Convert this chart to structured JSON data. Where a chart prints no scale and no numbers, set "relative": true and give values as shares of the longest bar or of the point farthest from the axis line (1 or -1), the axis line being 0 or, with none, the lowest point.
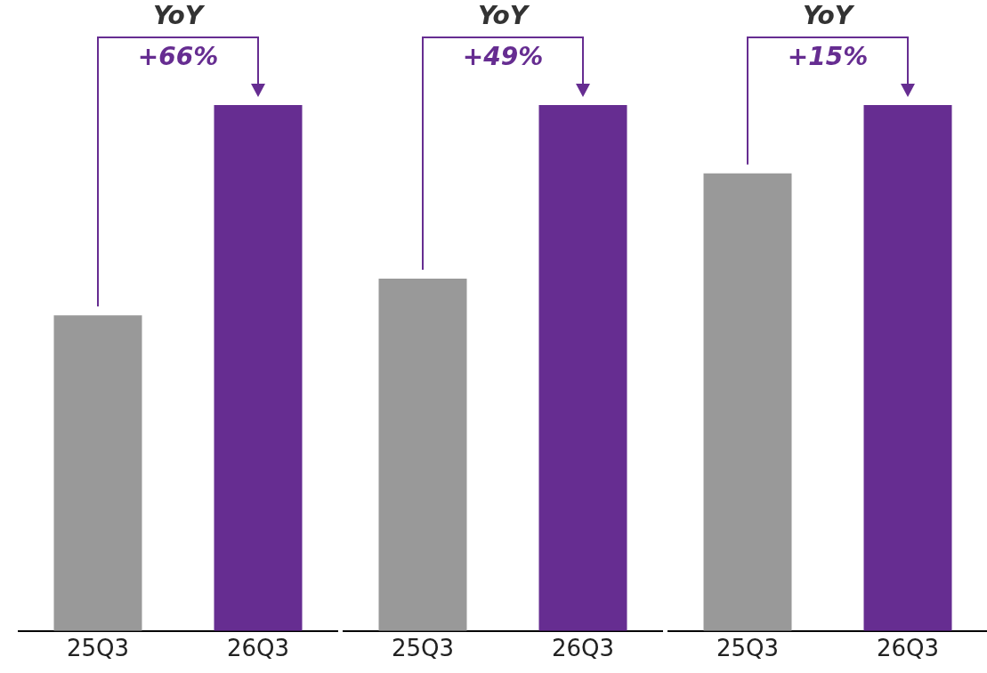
{
  "chart_data": [
    {
      "type": "bar",
      "relative": true,
      "categories": [
        "25Q3",
        "26Q3"
      ],
      "values": [
        0.6,
        1
      ],
      "colors": [
        "#999999",
        "#662d91"
      ],
      "annotations": [
        "YoY",
        "+66%"
      ]
    },
    {
      "type": "bar",
      "relative": true,
      "categories": [
        "25Q3",
        "26Q3"
      ],
      "values": [
        0.67,
        1
      ],
      "colors": [
        "#999999",
        "#662d91"
      ],
      "annotations": [
        "YoY",
        "+49%"
      ]
    },
    {
      "type": "bar",
      "relative": true,
      "categories": [
        "25Q3",
        "26Q3"
      ],
      "values": [
        0.87,
        1
      ],
      "colors": [
        "#999999",
        "#662d91"
      ],
      "annotations": [
        "YoY",
        "+15%"
      ]
    }
  ]
}
